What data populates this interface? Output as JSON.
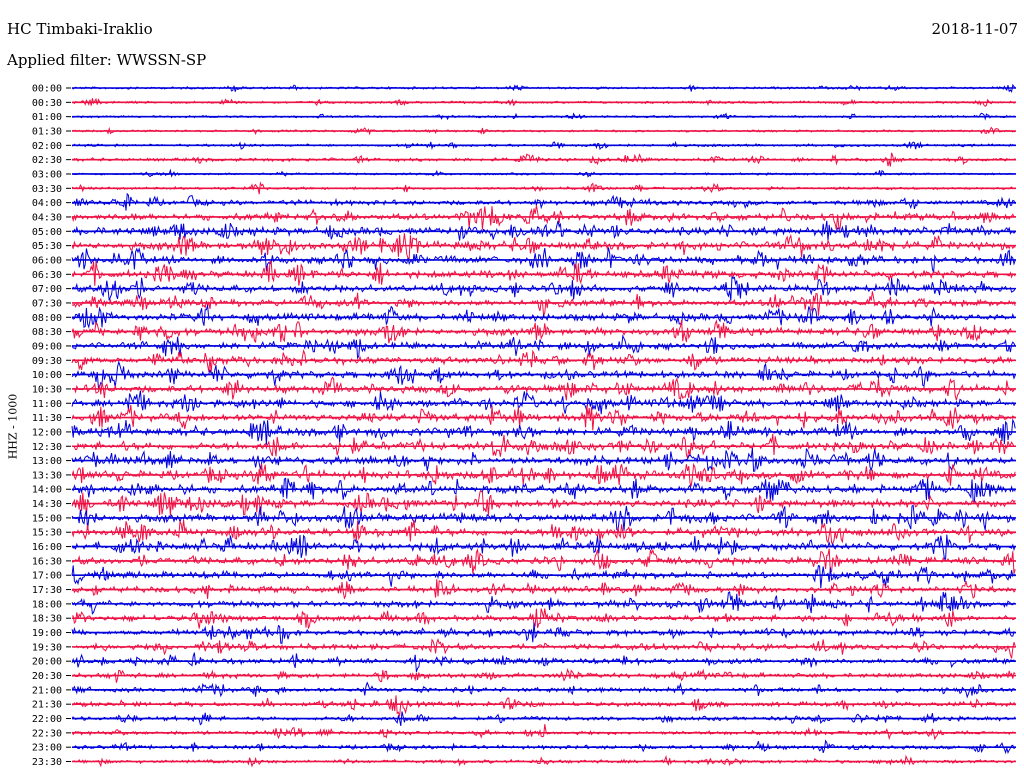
{
  "header": {
    "station": "HC Timbaki-Iraklio",
    "date": "2018-11-07",
    "filter": "Applied filter: WWSSN-SP"
  },
  "chart_data": {
    "type": "line",
    "ylabel": "HHZ - 1000",
    "colors": [
      "#0000dd",
      "#ee1144"
    ],
    "row_labels": [
      "00:00",
      "00:30",
      "01:00",
      "01:30",
      "02:00",
      "02:30",
      "03:00",
      "03:30",
      "04:00",
      "04:30",
      "05:00",
      "05:30",
      "06:00",
      "06:30",
      "07:00",
      "07:30",
      "08:00",
      "08:30",
      "09:00",
      "09:30",
      "10:00",
      "10:30",
      "11:00",
      "11:30",
      "12:00",
      "12:30",
      "13:00",
      "13:30",
      "14:00",
      "14:30",
      "15:00",
      "15:30",
      "16:00",
      "16:30",
      "17:00",
      "17:30",
      "18:00",
      "18:30",
      "19:00",
      "19:30",
      "20:00",
      "20:30",
      "21:00",
      "21:30",
      "22:00",
      "22:30",
      "23:00",
      "23:30"
    ],
    "row_activity": [
      0.15,
      0.15,
      0.12,
      0.12,
      0.18,
      0.3,
      0.12,
      0.2,
      0.5,
      0.8,
      0.9,
      0.9,
      0.85,
      0.8,
      0.8,
      0.75,
      0.8,
      0.8,
      0.75,
      0.75,
      0.8,
      0.85,
      0.85,
      0.85,
      0.9,
      0.9,
      0.9,
      0.95,
      0.95,
      0.9,
      0.9,
      0.9,
      0.85,
      0.8,
      0.75,
      0.7,
      0.7,
      0.65,
      0.65,
      0.6,
      0.55,
      0.5,
      0.45,
      0.45,
      0.4,
      0.35,
      0.35,
      0.3
    ]
  }
}
